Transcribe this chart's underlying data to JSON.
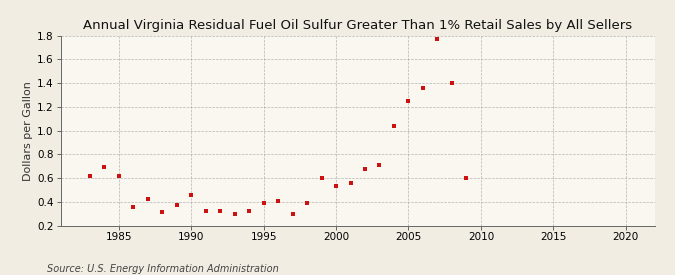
{
  "title": "Annual Virginia Residual Fuel Oil Sulfur Greater Than 1% Retail Sales by All Sellers",
  "ylabel": "Dollars per Gallon",
  "source": "Source: U.S. Energy Information Administration",
  "background_color": "#f2ede2",
  "plot_background_color": "#faf7f0",
  "marker_color": "#cc1111",
  "years": [
    1983,
    1984,
    1985,
    1986,
    1987,
    1988,
    1989,
    1990,
    1991,
    1992,
    1993,
    1994,
    1995,
    1996,
    1997,
    1998,
    1999,
    2000,
    2001,
    2002,
    2003,
    2004,
    2005,
    2006,
    2007,
    2008,
    2009
  ],
  "values": [
    0.62,
    0.69,
    0.62,
    0.36,
    0.42,
    0.31,
    0.37,
    0.46,
    0.32,
    0.32,
    0.3,
    0.32,
    0.39,
    0.41,
    0.3,
    0.39,
    0.6,
    0.53,
    0.56,
    0.68,
    0.71,
    1.04,
    1.25,
    1.36,
    1.77,
    1.4,
    0.6
  ],
  "xlim": [
    1981,
    2022
  ],
  "ylim": [
    0.2,
    1.8
  ],
  "xticks": [
    1985,
    1990,
    1995,
    2000,
    2005,
    2010,
    2015,
    2020
  ],
  "yticks": [
    0.2,
    0.4,
    0.6,
    0.8,
    1.0,
    1.2,
    1.4,
    1.6,
    1.8
  ],
  "title_fontsize": 9.5,
  "label_fontsize": 8,
  "tick_fontsize": 7.5,
  "source_fontsize": 7
}
